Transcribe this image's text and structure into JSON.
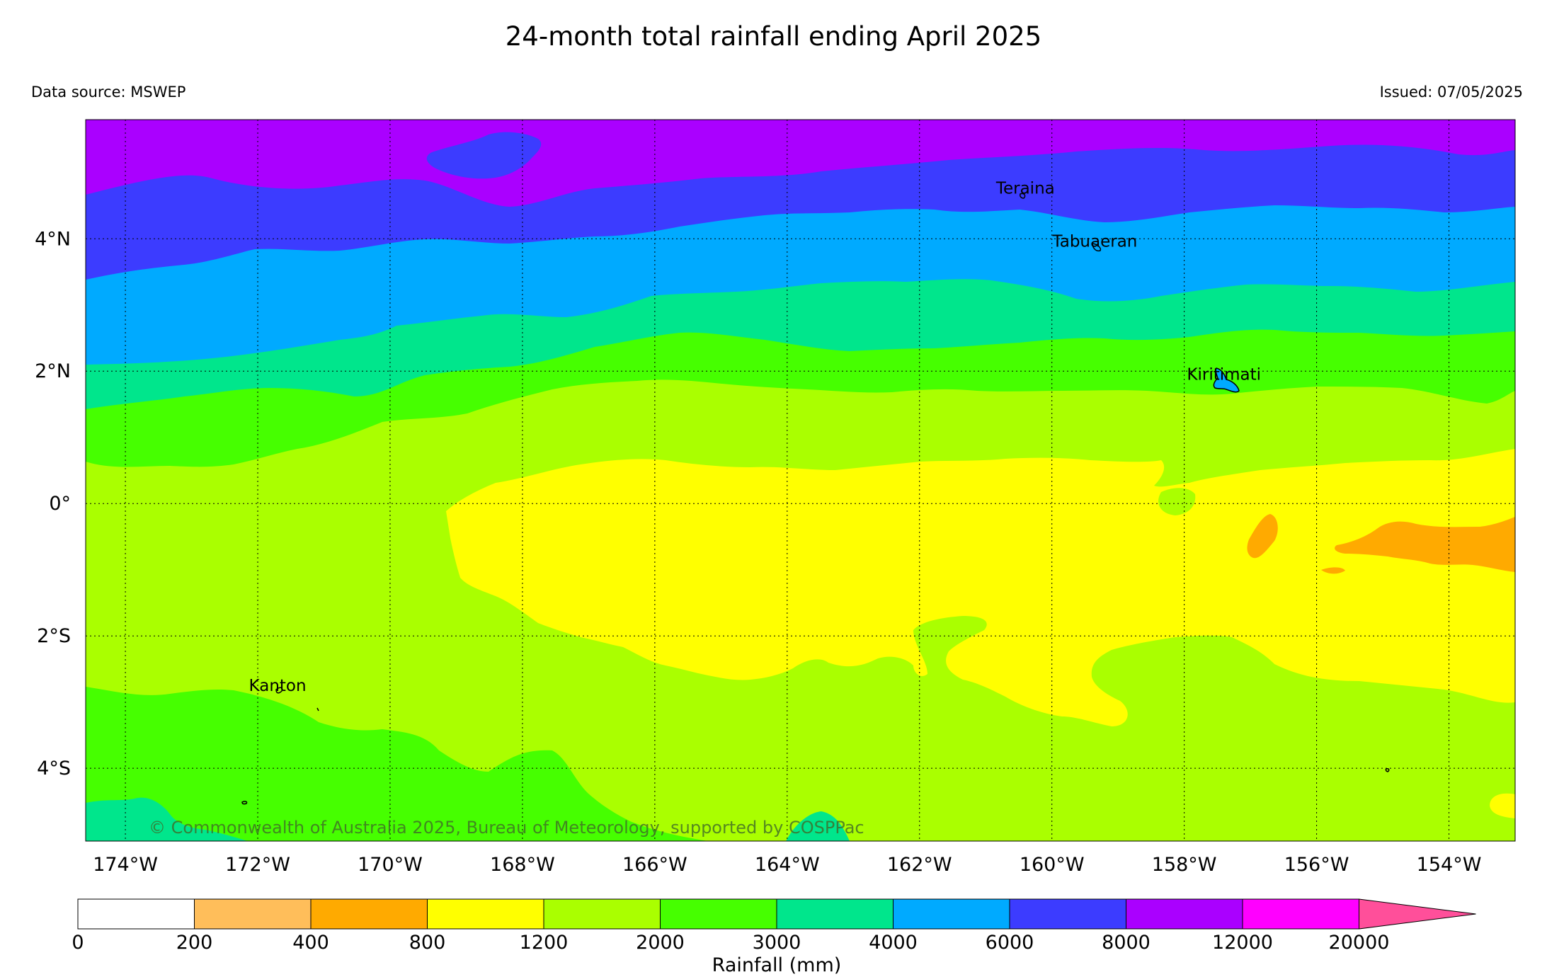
{
  "header": {
    "title": "24-month total rainfall ending April 2025",
    "data_source": "Data source: MSWEP",
    "issued": "Issued: 07/05/2025"
  },
  "map": {
    "lon_range": [
      -174.6,
      -153.0
    ],
    "lat_range": [
      -5.1,
      5.8
    ],
    "lon_ticks": [
      {
        "value": -174,
        "label": "174°W"
      },
      {
        "value": -172,
        "label": "172°W"
      },
      {
        "value": -170,
        "label": "170°W"
      },
      {
        "value": -168,
        "label": "168°W"
      },
      {
        "value": -166,
        "label": "166°W"
      },
      {
        "value": -164,
        "label": "164°W"
      },
      {
        "value": -162,
        "label": "162°W"
      },
      {
        "value": -160,
        "label": "160°W"
      },
      {
        "value": -158,
        "label": "158°W"
      },
      {
        "value": -156,
        "label": "156°W"
      },
      {
        "value": -154,
        "label": "154°W"
      }
    ],
    "lat_ticks": [
      {
        "value": 4,
        "label": "4°N"
      },
      {
        "value": 2,
        "label": "2°N"
      },
      {
        "value": 0,
        "label": "0°"
      },
      {
        "value": -2,
        "label": "2°S"
      },
      {
        "value": -4,
        "label": "4°S"
      }
    ],
    "places": [
      {
        "name": "Teraina",
        "lon": -160.4,
        "lat": 4.68
      },
      {
        "name": "Tabuaeran",
        "lon": -159.35,
        "lat": 3.88
      },
      {
        "name": "Kiritimati",
        "lon": -157.4,
        "lat": 1.87
      },
      {
        "name": "Kanton",
        "lon": -171.7,
        "lat": -2.83
      }
    ],
    "copyright": "© Commonwealth of Australia 2025, Bureau of Meteorology, supported by COSPPac"
  },
  "legend": {
    "label": "Rainfall (mm)",
    "bins": [
      {
        "from": 0,
        "to": 200,
        "color": "#ffffff"
      },
      {
        "from": 200,
        "to": 400,
        "color": "#ffbe5a"
      },
      {
        "from": 400,
        "to": 800,
        "color": "#ffaa00"
      },
      {
        "from": 800,
        "to": 1200,
        "color": "#ffff00"
      },
      {
        "from": 1200,
        "to": 2000,
        "color": "#aaff00"
      },
      {
        "from": 2000,
        "to": 3000,
        "color": "#46ff00"
      },
      {
        "from": 3000,
        "to": 4000,
        "color": "#00e68c"
      },
      {
        "from": 4000,
        "to": 6000,
        "color": "#00aaff"
      },
      {
        "from": 6000,
        "to": 8000,
        "color": "#3c3cff"
      },
      {
        "from": 8000,
        "to": 12000,
        "color": "#aa00ff"
      },
      {
        "from": 12000,
        "to": 20000,
        "color": "#ff00ff"
      }
    ],
    "tick_labels": [
      "0",
      "200",
      "400",
      "800",
      "1200",
      "2000",
      "3000",
      "4000",
      "6000",
      "8000",
      "12000",
      "20000"
    ],
    "extend_color": "#ff4f9a"
  }
}
